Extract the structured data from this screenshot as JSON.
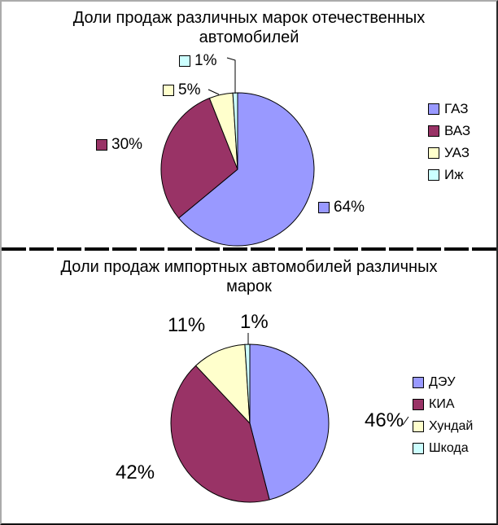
{
  "window": {
    "background": "#FFFFFF",
    "border_light": "#ABABAB",
    "border_dark": "#1A1A1A"
  },
  "divider": {
    "style": "dashed",
    "color": "#000000"
  },
  "chart_data": [
    {
      "type": "pie",
      "title": "Доли продаж различных марок отечественных автомобилей",
      "title_lines": [
        "Доли продаж различных марок отечественных",
        "автомобилей"
      ],
      "legend_position": "right",
      "data_labels": "percent with legend key",
      "outline_color": "#000000",
      "text_color": "#000000",
      "slices": [
        {
          "name": "ГАЗ",
          "value": 64,
          "label": "64%",
          "color": "#9999FF"
        },
        {
          "name": "ВАЗ",
          "value": 30,
          "label": "30%",
          "color": "#993366"
        },
        {
          "name": "УАЗ",
          "value": 5,
          "label": "5%",
          "color": "#FFFFCC"
        },
        {
          "name": "Иж",
          "value": 1,
          "label": "1%",
          "color": "#CCFFFF"
        }
      ]
    },
    {
      "type": "pie",
      "title": "Доли продаж импортных автомобилей различных марок",
      "title_lines": [
        "Доли продаж импортных автомобилей различных",
        "марок"
      ],
      "legend_position": "right",
      "data_labels": "percent",
      "outline_color": "#000000",
      "text_color": "#000000",
      "slices": [
        {
          "name": "ДЭУ",
          "value": 46,
          "label": "46%",
          "color": "#9999FF"
        },
        {
          "name": "КИА",
          "value": 42,
          "label": "42%",
          "color": "#993366"
        },
        {
          "name": "Хундай",
          "value": 11,
          "label": "11%",
          "color": "#FFFFCC"
        },
        {
          "name": "Шкода",
          "value": 1,
          "label": "1%",
          "color": "#CCFFFF"
        }
      ]
    }
  ]
}
